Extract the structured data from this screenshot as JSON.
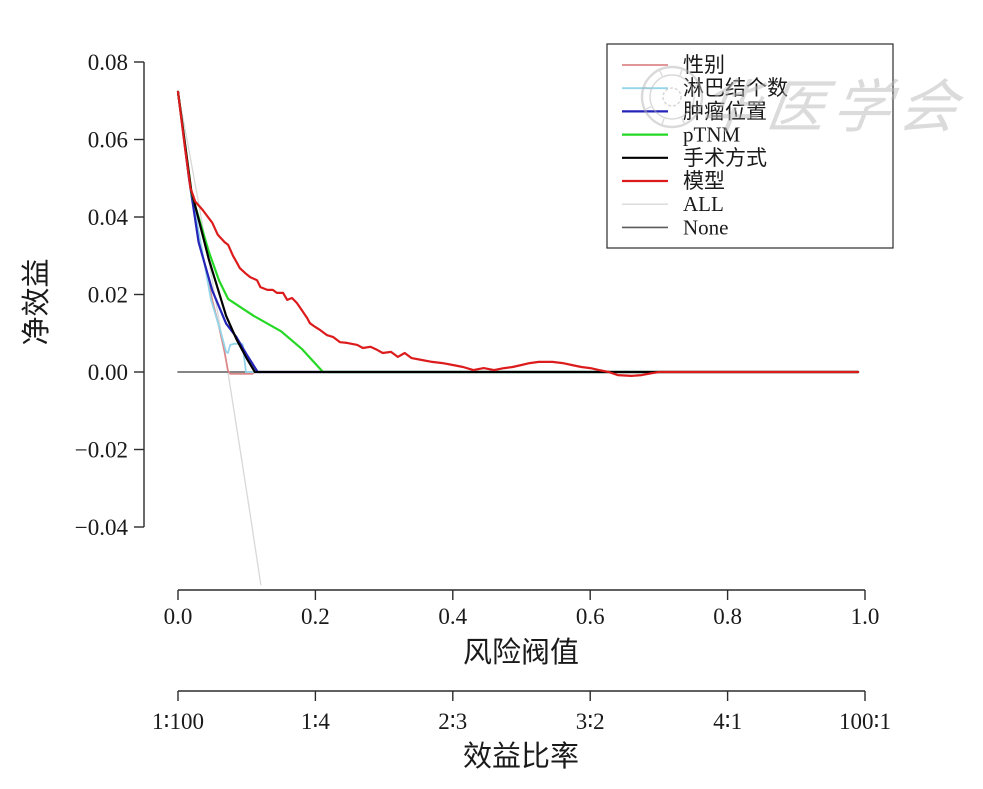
{
  "watermark": {
    "text": "华医学会"
  },
  "chart_data": {
    "type": "line",
    "title": "",
    "x_axis": {
      "label": "风险阀值",
      "range": [
        0,
        1
      ],
      "ticks": [
        0,
        0.2,
        0.4,
        0.6,
        0.8,
        1.0
      ],
      "tick_labels": [
        "0.0",
        "0.2",
        "0.4",
        "0.6",
        "0.8",
        "1.0"
      ]
    },
    "x_axis_secondary": {
      "label": "效益比率",
      "ticks": [
        0,
        0.2,
        0.4,
        0.6,
        0.8,
        1.0
      ],
      "tick_labels": [
        "1∶100",
        "1∶4",
        "2∶3",
        "3∶2",
        "4∶1",
        "100∶1"
      ]
    },
    "y_axis": {
      "label": "净效益",
      "range": [
        -0.0565,
        0.08
      ],
      "ticks": [
        0.08,
        0.06,
        0.04,
        0.02,
        0.0,
        -0.02,
        -0.04
      ],
      "tick_labels": [
        "0.08",
        "0.06",
        "0.04",
        "0.02",
        "0.00",
        "−0.02",
        "−0.04"
      ]
    },
    "legend": {
      "position": "top-right",
      "entries": [
        "gender",
        "lymph-node-count",
        "tumor-location",
        "ptnm",
        "surgery-method",
        "model",
        "all",
        "none"
      ]
    },
    "grid": false,
    "series": [
      {
        "id": "all",
        "label": "ALL",
        "color": "#d8d8d8",
        "width": 1.3,
        "points": [
          [
            0,
            0.0723
          ],
          [
            0.01,
            0.0629
          ],
          [
            0.02,
            0.0534
          ],
          [
            0.03,
            0.0436
          ],
          [
            0.04,
            0.0336
          ],
          [
            0.05,
            0.0235
          ],
          [
            0.06,
            0.0131
          ],
          [
            0.0727,
            0
          ],
          [
            0.09,
            -0.0195
          ],
          [
            0.105,
            -0.0366
          ],
          [
            0.1205,
            -0.0549
          ]
        ]
      },
      {
        "id": "none",
        "label": "None",
        "color": "#5c5c5c",
        "width": 1.6,
        "points": [
          [
            0,
            0
          ],
          [
            0.99,
            0
          ]
        ]
      },
      {
        "id": "gender",
        "label": "性别",
        "color": "#dd8888",
        "width": 1.8,
        "points": [
          [
            0,
            0.0723
          ],
          [
            0.016,
            0.05
          ],
          [
            0.035,
            0.031
          ],
          [
            0.05,
            0.0185
          ],
          [
            0.06,
            0.0115
          ],
          [
            0.068,
            0.005
          ],
          [
            0.0727,
            0.0004
          ],
          [
            0.076,
            -0.0005
          ],
          [
            0.108,
            -0.0005
          ],
          [
            0.112,
            0
          ],
          [
            0.99,
            0
          ]
        ]
      },
      {
        "id": "lymph-node-count",
        "label": "淋巴结个数",
        "color": "#94d5ea",
        "width": 1.8,
        "points": [
          [
            0,
            0.0723
          ],
          [
            0.016,
            0.05
          ],
          [
            0.048,
            0.0186
          ],
          [
            0.062,
            0.0105
          ],
          [
            0.07,
            0.0052
          ],
          [
            0.0727,
            0.0049
          ],
          [
            0.076,
            0.007
          ],
          [
            0.082,
            0.0073
          ],
          [
            0.094,
            0.0072
          ],
          [
            0.096,
            0.004
          ],
          [
            0.099,
            0
          ],
          [
            0.99,
            0
          ]
        ]
      },
      {
        "id": "tumor-location",
        "label": "肿瘤位置",
        "color": "#2424b8",
        "width": 2.2,
        "points": [
          [
            0,
            0.0723
          ],
          [
            0.016,
            0.05
          ],
          [
            0.03,
            0.0335
          ],
          [
            0.05,
            0.021
          ],
          [
            0.07,
            0.0125
          ],
          [
            0.085,
            0.009
          ],
          [
            0.1,
            0.0045
          ],
          [
            0.116,
            0
          ],
          [
            0.99,
            0
          ]
        ]
      },
      {
        "id": "ptnm",
        "label": "pTNM",
        "color": "#25d825",
        "width": 2.2,
        "points": [
          [
            0,
            0.0723
          ],
          [
            0.02,
            0.046
          ],
          [
            0.045,
            0.031
          ],
          [
            0.06,
            0.0235
          ],
          [
            0.073,
            0.0188
          ],
          [
            0.11,
            0.0145
          ],
          [
            0.15,
            0.0105
          ],
          [
            0.18,
            0.006
          ],
          [
            0.211,
            0
          ],
          [
            0.99,
            0
          ]
        ]
      },
      {
        "id": "surgery-method",
        "label": "手术方式",
        "color": "#000000",
        "width": 2.2,
        "points": [
          [
            0,
            0.0723
          ],
          [
            0.019,
            0.047
          ],
          [
            0.045,
            0.029
          ],
          [
            0.07,
            0.0145
          ],
          [
            0.085,
            0.0085
          ],
          [
            0.1,
            0.0035
          ],
          [
            0.112,
            0
          ],
          [
            0.99,
            0
          ]
        ]
      },
      {
        "id": "model",
        "label": "模型",
        "color": "#dc1c1c",
        "width": 2.2,
        "points": [
          [
            0,
            0.0723
          ],
          [
            0.01,
            0.058
          ],
          [
            0.018,
            0.0475
          ],
          [
            0.025,
            0.044
          ],
          [
            0.036,
            0.0418
          ],
          [
            0.05,
            0.0385
          ],
          [
            0.058,
            0.0354
          ],
          [
            0.068,
            0.0335
          ],
          [
            0.073,
            0.0328
          ],
          [
            0.08,
            0.03
          ],
          [
            0.086,
            0.0281
          ],
          [
            0.09,
            0.0268
          ],
          [
            0.098,
            0.0255
          ],
          [
            0.105,
            0.0245
          ],
          [
            0.115,
            0.0237
          ],
          [
            0.12,
            0.0219
          ],
          [
            0.13,
            0.0212
          ],
          [
            0.138,
            0.0212
          ],
          [
            0.144,
            0.0204
          ],
          [
            0.153,
            0.0204
          ],
          [
            0.159,
            0.0186
          ],
          [
            0.166,
            0.0191
          ],
          [
            0.173,
            0.0178
          ],
          [
            0.18,
            0.016
          ],
          [
            0.188,
            0.0139
          ],
          [
            0.192,
            0.0126
          ],
          [
            0.2,
            0.0116
          ],
          [
            0.207,
            0.0108
          ],
          [
            0.217,
            0.0095
          ],
          [
            0.226,
            0.009
          ],
          [
            0.236,
            0.0077
          ],
          [
            0.246,
            0.0075
          ],
          [
            0.261,
            0.007
          ],
          [
            0.269,
            0.0062
          ],
          [
            0.28,
            0.0065
          ],
          [
            0.29,
            0.0057
          ],
          [
            0.298,
            0.0049
          ],
          [
            0.31,
            0.0052
          ],
          [
            0.32,
            0.0039
          ],
          [
            0.33,
            0.0049
          ],
          [
            0.34,
            0.0036
          ],
          [
            0.355,
            0.0031
          ],
          [
            0.37,
            0.0026
          ],
          [
            0.385,
            0.0023
          ],
          [
            0.4,
            0.0018
          ],
          [
            0.415,
            0.0013
          ],
          [
            0.43,
            0.0005
          ],
          [
            0.445,
            0.001
          ],
          [
            0.46,
            0.0005
          ],
          [
            0.475,
            0.001
          ],
          [
            0.487,
            0.0013
          ],
          [
            0.5,
            0.0018
          ],
          [
            0.512,
            0.0023
          ],
          [
            0.525,
            0.0026
          ],
          [
            0.545,
            0.0026
          ],
          [
            0.56,
            0.0023
          ],
          [
            0.573,
            0.0018
          ],
          [
            0.587,
            0.0013
          ],
          [
            0.6,
            0.001
          ],
          [
            0.613,
            0.0005
          ],
          [
            0.627,
            0
          ],
          [
            0.64,
            -0.0008
          ],
          [
            0.66,
            -0.001
          ],
          [
            0.675,
            -0.0008
          ],
          [
            0.69,
            -0.0003
          ],
          [
            0.7,
            0
          ],
          [
            0.99,
            0
          ]
        ]
      }
    ]
  }
}
